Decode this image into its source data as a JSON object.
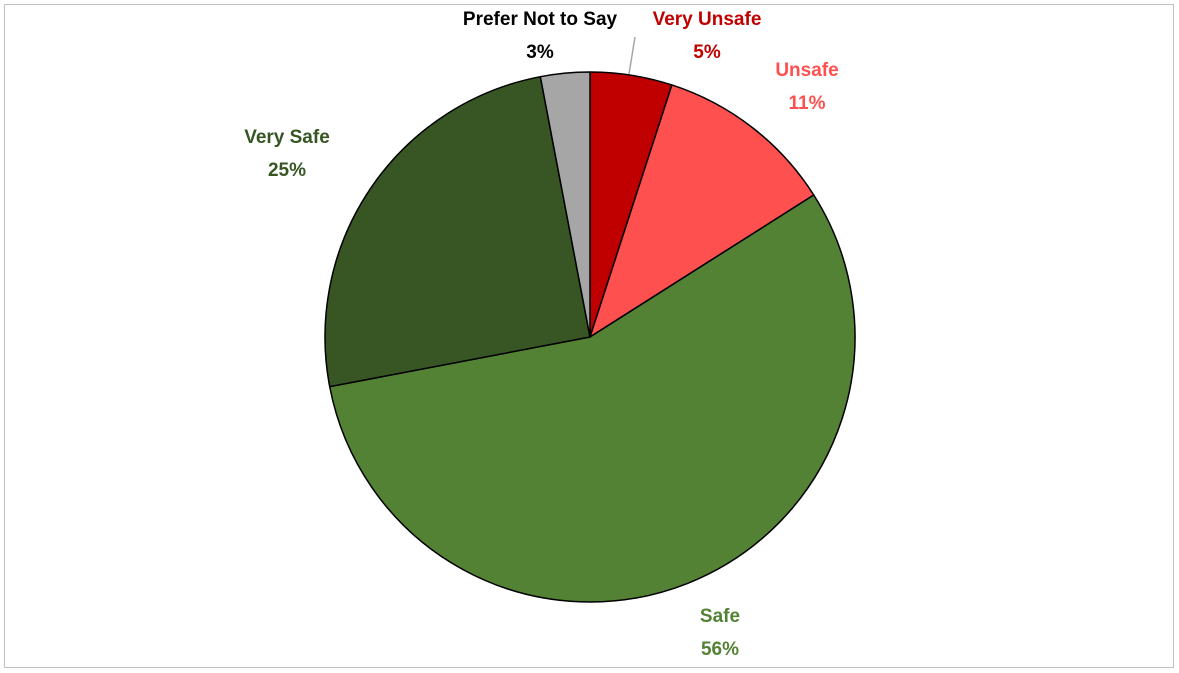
{
  "chart_data": {
    "type": "pie",
    "title": "",
    "slices": [
      {
        "label": "Very Unsafe",
        "value": 5,
        "value_label": "5%",
        "color": "#c00000",
        "label_color": "#c00000"
      },
      {
        "label": "Unsafe",
        "value": 11,
        "value_label": "11%",
        "color": "#ff5050",
        "label_color": "#ff5050"
      },
      {
        "label": "Safe",
        "value": 56,
        "value_label": "56%",
        "color": "#548235",
        "label_color": "#548235"
      },
      {
        "label": "Very Safe",
        "value": 25,
        "value_label": "25%",
        "color": "#375623",
        "label_color": "#375623"
      },
      {
        "label": "Prefer Not to Say",
        "value": 3,
        "value_label": "3%",
        "color": "#a6a6a6",
        "label_color": "#000000"
      }
    ],
    "legend": "none",
    "start_angle": "top",
    "direction": "clockwise"
  }
}
